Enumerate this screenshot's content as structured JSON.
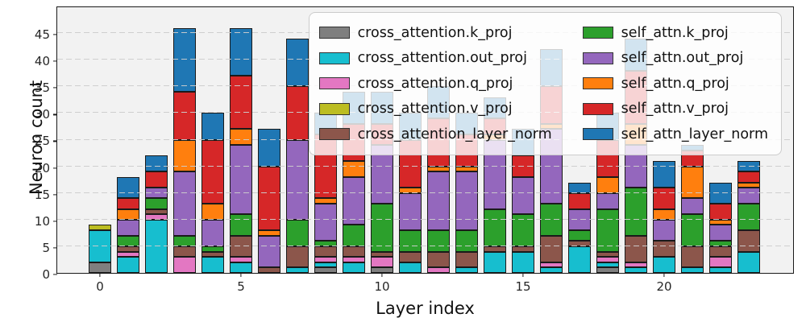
{
  "figure": {
    "background": "#ffffff",
    "plot_background": "#f2f2f2",
    "spine_color": "#1a1a1a"
  },
  "chart_data": {
    "type": "bar",
    "stacked": true,
    "title": "",
    "xlabel": "Layer index",
    "ylabel": "Neuron count",
    "x": [
      0,
      1,
      2,
      3,
      4,
      5,
      6,
      7,
      8,
      9,
      10,
      11,
      12,
      13,
      14,
      15,
      16,
      17,
      18,
      19,
      20,
      21,
      22,
      23
    ],
    "xticks": [
      0,
      5,
      10,
      15,
      20
    ],
    "yticks": [
      0,
      5,
      10,
      15,
      20,
      25,
      30,
      35,
      40,
      45
    ],
    "ylim": [
      0,
      50
    ],
    "grid": "horizontal-dashed",
    "legend_position": "upper-right",
    "bar_width_units": 0.8,
    "series": [
      {
        "name": "cross_attention.k_proj",
        "color": "#7f7f7f",
        "values": [
          2,
          0,
          0,
          0,
          0,
          0,
          0,
          0,
          1,
          0,
          1,
          0,
          0,
          0,
          0,
          0,
          0,
          0,
          1,
          0,
          0,
          0,
          0,
          0
        ]
      },
      {
        "name": "cross_attention.out_proj",
        "color": "#17becf",
        "values": [
          6,
          3,
          10,
          0,
          3,
          2,
          0,
          1,
          1,
          2,
          0,
          2,
          0,
          1,
          4,
          4,
          1,
          5,
          1,
          1,
          3,
          1,
          1,
          4
        ]
      },
      {
        "name": "cross_attention.q_proj",
        "color": "#e377c2",
        "values": [
          0,
          1,
          1,
          3,
          0,
          1,
          0,
          0,
          1,
          1,
          2,
          0,
          1,
          0,
          0,
          0,
          1,
          0,
          1,
          1,
          0,
          0,
          2,
          0
        ]
      },
      {
        "name": "cross_attention.v_proj",
        "color": "#bcbd22",
        "values": [
          1,
          0,
          0,
          0,
          0,
          0,
          0,
          0,
          0,
          0,
          0,
          0,
          0,
          0,
          0,
          0,
          0,
          0,
          0,
          0,
          0,
          0,
          0,
          0
        ]
      },
      {
        "name": "cross_attention_layer_norm",
        "color": "#8c564b",
        "values": [
          0,
          1,
          1,
          2,
          1,
          4,
          1,
          4,
          2,
          2,
          1,
          2,
          3,
          3,
          1,
          1,
          5,
          1,
          1,
          5,
          3,
          4,
          2,
          4
        ]
      },
      {
        "name": "self_attn.k_proj",
        "color": "#2ca02c",
        "values": [
          0,
          2,
          2,
          2,
          1,
          4,
          0,
          5,
          1,
          4,
          9,
          4,
          4,
          4,
          7,
          6,
          6,
          2,
          8,
          9,
          0,
          6,
          1,
          5
        ]
      },
      {
        "name": "self_attn.out_proj",
        "color": "#9467bd",
        "values": [
          0,
          3,
          2,
          12,
          5,
          13,
          6,
          15,
          7,
          9,
          11,
          7,
          11,
          11,
          13,
          7,
          14,
          4,
          3,
          8,
          4,
          3,
          3,
          3
        ]
      },
      {
        "name": "self_attn.q_proj",
        "color": "#ff7f0e",
        "values": [
          0,
          2,
          0,
          6,
          3,
          3,
          1,
          0,
          1,
          3,
          0,
          1,
          1,
          1,
          1,
          0,
          1,
          0,
          3,
          4,
          2,
          6,
          1,
          1
        ]
      },
      {
        "name": "self_attn.v_proj",
        "color": "#d62728",
        "values": [
          0,
          2,
          3,
          9,
          12,
          10,
          12,
          10,
          12,
          7,
          4,
          9,
          9,
          6,
          3,
          4,
          7,
          3,
          7,
          10,
          4,
          3,
          3,
          2
        ]
      },
      {
        "name": "self_attn_layer_norm",
        "color": "#1f77b4",
        "values": [
          0,
          4,
          3,
          12,
          5,
          9,
          7,
          9,
          4,
          6,
          6,
          5,
          6,
          4,
          4,
          5,
          7,
          2,
          5,
          6,
          5,
          1,
          4,
          2
        ]
      }
    ],
    "legend_columns": [
      [
        "cross_attention.k_proj",
        "cross_attention.out_proj",
        "cross_attention.q_proj",
        "cross_attention.v_proj",
        "cross_attention_layer_norm"
      ],
      [
        "self_attn.k_proj",
        "self_attn.out_proj",
        "self_attn.q_proj",
        "self_attn.v_proj",
        "self_attn_layer_norm"
      ]
    ]
  }
}
